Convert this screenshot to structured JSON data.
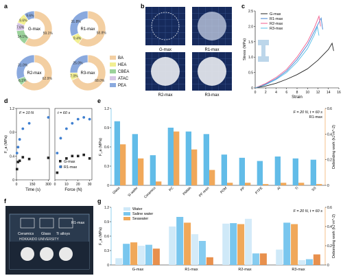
{
  "panels": {
    "a": "a",
    "b": "b",
    "c": "c",
    "d": "d",
    "e": "e",
    "f": "f",
    "g": "g"
  },
  "colors": {
    "BA": "#f3cfa2",
    "HEA": "#f2ef92",
    "CBEA": "#9bd29b",
    "ATAC": "#d6c6e6",
    "PEA": "#8aa9de",
    "gmax": "#222222",
    "r1max": "#3f7fd0",
    "r2max": "#f05b8c",
    "r3max": "#56bde8",
    "fa": "#62bce8",
    "work": "#f0a85a",
    "water": "#cfe9f8",
    "saline": "#79c6ee",
    "seawater": "#f0a85a",
    "seawater_dark": "#e6843a"
  },
  "legend_a": [
    {
      "key": "BA",
      "label": "BA"
    },
    {
      "key": "HEA",
      "label": "HEA"
    },
    {
      "key": "CBEA",
      "label": "CBEA"
    },
    {
      "key": "ATAC",
      "label": "ATAC"
    },
    {
      "key": "PEA",
      "label": "PEA"
    }
  ],
  "panel_b_labels": [
    "G-max",
    "R1-max",
    "R2-max",
    "R3-max"
  ],
  "photo_f": {
    "ceramics": "Ceramics",
    "glass": "Glass",
    "ti": "Ti alloys",
    "r1": "R1-max",
    "univ": "HOKKAIDO UNIVERSITY"
  },
  "chart_data": [
    {
      "panel": "a",
      "type": "pie",
      "donuts": [
        {
          "name": "G-max",
          "slices": [
            {
              "label": "BA",
              "value": 59.1
            },
            {
              "label": "CBEA",
              "value": 14.1
            },
            {
              "label": "ATAC",
              "value": 7.6
            },
            {
              "label": "HEA",
              "value": 9.6
            },
            {
              "label": "PEA",
              "value": 9.6
            }
          ],
          "value_labels": [
            "59.1%",
            "14.1%",
            "7.6%",
            "9.6%",
            "9.6%"
          ]
        },
        {
          "name": "R1-max",
          "slices": [
            {
              "label": "BA",
              "value": 58.8
            },
            {
              "label": "HEA",
              "value": 9.4
            },
            {
              "label": "PEA",
              "value": 31.8
            }
          ],
          "value_labels": [
            "58.8%",
            "9.4%",
            "31.8%"
          ]
        },
        {
          "name": "R2-max",
          "slices": [
            {
              "label": "BA",
              "value": 62.9
            },
            {
              "label": "CBEA",
              "value": 6.1
            },
            {
              "label": "PEA",
              "value": 31.0
            }
          ],
          "value_labels": [
            "62.9%",
            "6.1%",
            "31.0%"
          ]
        },
        {
          "name": "R3-max",
          "slices": [
            {
              "label": "BA",
              "value": 68.0
            },
            {
              "label": "HEA",
              "value": 7.0
            },
            {
              "label": "PEA",
              "value": 25.0
            }
          ],
          "value_labels": [
            "68.0%",
            "7.0%",
            "25.0%"
          ]
        }
      ]
    },
    {
      "panel": "c",
      "type": "line",
      "xlabel": "Strain",
      "ylabel": "Stress (MPa)",
      "xlim": [
        0,
        16
      ],
      "ylim": [
        0,
        2.5
      ],
      "xticks": [
        0,
        2,
        4,
        6,
        8,
        10,
        12,
        14,
        16
      ],
      "yticks": [
        0,
        0.5,
        1.0,
        1.5,
        2.0,
        2.5
      ],
      "xtick_labels": [
        "0",
        "2",
        "4",
        "6",
        "8",
        "10",
        "12",
        "14",
        "16"
      ],
      "ytick_labels": [
        "0",
        "0.5",
        "1.0",
        "1.5",
        "2.0",
        "2.5"
      ],
      "series": [
        {
          "name": "G-max",
          "key": "gmax",
          "points": [
            [
              0,
              0
            ],
            [
              2,
              0.06
            ],
            [
              4,
              0.15
            ],
            [
              6,
              0.28
            ],
            [
              8,
              0.43
            ],
            [
              10,
              0.62
            ],
            [
              12,
              0.9
            ],
            [
              14,
              1.25
            ],
            [
              14.7,
              1.45
            ],
            [
              15.0,
              1.2
            ]
          ]
        },
        {
          "name": "R1-max",
          "key": "r1max",
          "points": [
            [
              0,
              0
            ],
            [
              2,
              0.12
            ],
            [
              4,
              0.3
            ],
            [
              6,
              0.55
            ],
            [
              8,
              0.92
            ],
            [
              10,
              1.4
            ],
            [
              11.5,
              1.9
            ],
            [
              12.6,
              2.27
            ],
            [
              12.9,
              1.9
            ]
          ]
        },
        {
          "name": "R2-max",
          "key": "r2max",
          "points": [
            [
              0,
              0
            ],
            [
              2,
              0.14
            ],
            [
              4,
              0.34
            ],
            [
              6,
              0.6
            ],
            [
              8,
              1.0
            ],
            [
              10,
              1.5
            ],
            [
              11.3,
              1.95
            ],
            [
              12.2,
              2.33
            ],
            [
              12.5,
              2.0
            ]
          ]
        },
        {
          "name": "R3-max",
          "key": "r3max",
          "points": [
            [
              0,
              0
            ],
            [
              2,
              0.1
            ],
            [
              4,
              0.27
            ],
            [
              6,
              0.5
            ],
            [
              8,
              0.84
            ],
            [
              10,
              1.28
            ],
            [
              11.3,
              1.72
            ],
            [
              11.9,
              1.98
            ],
            [
              12.2,
              1.7
            ]
          ]
        }
      ]
    },
    {
      "panel": "d",
      "type": "scatter",
      "ylabel": "F_a (MPa)",
      "yticks": [
        0,
        0.4,
        0.8,
        1.2
      ],
      "ytick_labels": [
        "0",
        "0.4",
        "0.8",
        "1.2"
      ],
      "ylim": [
        0,
        1.2
      ],
      "subplots": [
        {
          "condition": "F = 10 N",
          "xlabel": "Time (s)",
          "xlim": [
            0,
            310
          ],
          "xticks": [
            0,
            150,
            300
          ],
          "xtick_labels": [
            "0",
            "150",
            "300"
          ],
          "series": [
            {
              "name": "G-max",
              "key": "gmax",
              "x": [
                5,
                15,
                30,
                60,
                120,
                300
              ],
              "y": [
                0.18,
                0.3,
                0.32,
                0.38,
                0.35,
                0.37
              ]
            },
            {
              "name": "R1-max",
              "key": "r1max",
              "x": [
                5,
                15,
                30,
                60,
                120,
                300
              ],
              "y": [
                0.45,
                0.55,
                0.68,
                0.86,
                0.95,
                1.05
              ]
            }
          ]
        },
        {
          "condition": "t = 60 s",
          "xlabel": "Force (N)",
          "xlim": [
            0,
            32
          ],
          "xticks": [
            0,
            10,
            20,
            30
          ],
          "xtick_labels": [
            "0",
            "10",
            "20",
            "30"
          ],
          "series": [
            {
              "name": "G-max",
              "key": "gmax",
              "x": [
                2,
                5,
                10,
                15,
                20,
                25,
                30
              ],
              "y": [
                0.12,
                0.22,
                0.36,
                0.4,
                0.4,
                0.42,
                0.36
              ]
            },
            {
              "name": "R1-max",
              "key": "r1max",
              "x": [
                2,
                5,
                10,
                15,
                20,
                25,
                30
              ],
              "y": [
                0.45,
                0.7,
                0.86,
                0.95,
                1.02,
                1.05,
                1.02
              ]
            }
          ]
        }
      ]
    },
    {
      "panel": "e",
      "type": "bar",
      "annotation": "F = 20 N, t = 60 s",
      "annotation2": "R1-max",
      "categories": [
        "Glass",
        "Si wafer",
        "Ceramics",
        "PC",
        "PMMA",
        "PF resin",
        "POM",
        "PP",
        "PTFE",
        "Al",
        "Ti",
        "SS"
      ],
      "ylabel": "F_a (MPa)",
      "ylabel2": "Debonding work (kJ m^-2)",
      "ylim": [
        0,
        1.2
      ],
      "yticks": [
        0,
        0.3,
        0.6,
        0.9,
        1.2
      ],
      "ytick_labels": [
        "0",
        "0.3",
        "0.6",
        "0.9",
        "1.2"
      ],
      "ylim2": [
        0,
        0.6
      ],
      "yticks2": [
        0,
        0.2,
        0.4,
        0.6
      ],
      "ytick_labels2": [
        "0",
        "0.2",
        "0.4",
        "0.6"
      ],
      "series": [
        {
          "key": "fa",
          "axis": "left",
          "values": [
            1.0,
            0.8,
            0.47,
            0.9,
            0.84,
            0.8,
            0.48,
            0.43,
            0.38,
            0.45,
            0.42,
            0.4
          ]
        },
        {
          "key": "work",
          "axis": "right",
          "values": [
            0.32,
            0.21,
            0.03,
            0.42,
            0.28,
            0.12,
            0.02,
            0.02,
            0.01,
            0.02,
            0.02,
            0.01
          ]
        }
      ]
    },
    {
      "panel": "g",
      "type": "bar",
      "annotation": "F = 20 N, t = 60 s",
      "categories": [
        "G-max",
        "R1-max",
        "R2-max",
        "R3-max"
      ],
      "ylabel": "F_a (MPa)",
      "ylabel2": "Debonding work (kJ m^-2)",
      "ylim": [
        0,
        1.2
      ],
      "yticks": [
        0,
        0.3,
        0.6,
        0.9,
        1.2
      ],
      "ytick_labels": [
        "0",
        "0.3",
        "0.6",
        "0.9",
        "1.2"
      ],
      "ylim2": [
        0,
        0.6
      ],
      "yticks2": [
        0,
        0.2,
        0.4,
        0.6
      ],
      "ytick_labels2": [
        "0",
        "0.2",
        "0.4",
        "0.6"
      ],
      "legend": [
        {
          "name": "Water",
          "key": "water"
        },
        {
          "name": "Saline water",
          "key": "saline"
        },
        {
          "name": "Seawater",
          "key": "seawater"
        }
      ],
      "fa": [
        [
          0.14,
          0.44,
          0.47
        ],
        [
          0.8,
          1.0,
          0.88
        ],
        [
          0.86,
          0.87,
          0.85
        ],
        [
          0.32,
          0.88,
          0.85
        ]
      ],
      "work": [
        [
          0.2,
          0.21,
          0.17
        ],
        [
          0.32,
          0.25,
          0.08
        ],
        [
          0.48,
          0.12,
          0.12
        ],
        [
          0.05,
          0.06,
          0.11
        ]
      ]
    }
  ]
}
